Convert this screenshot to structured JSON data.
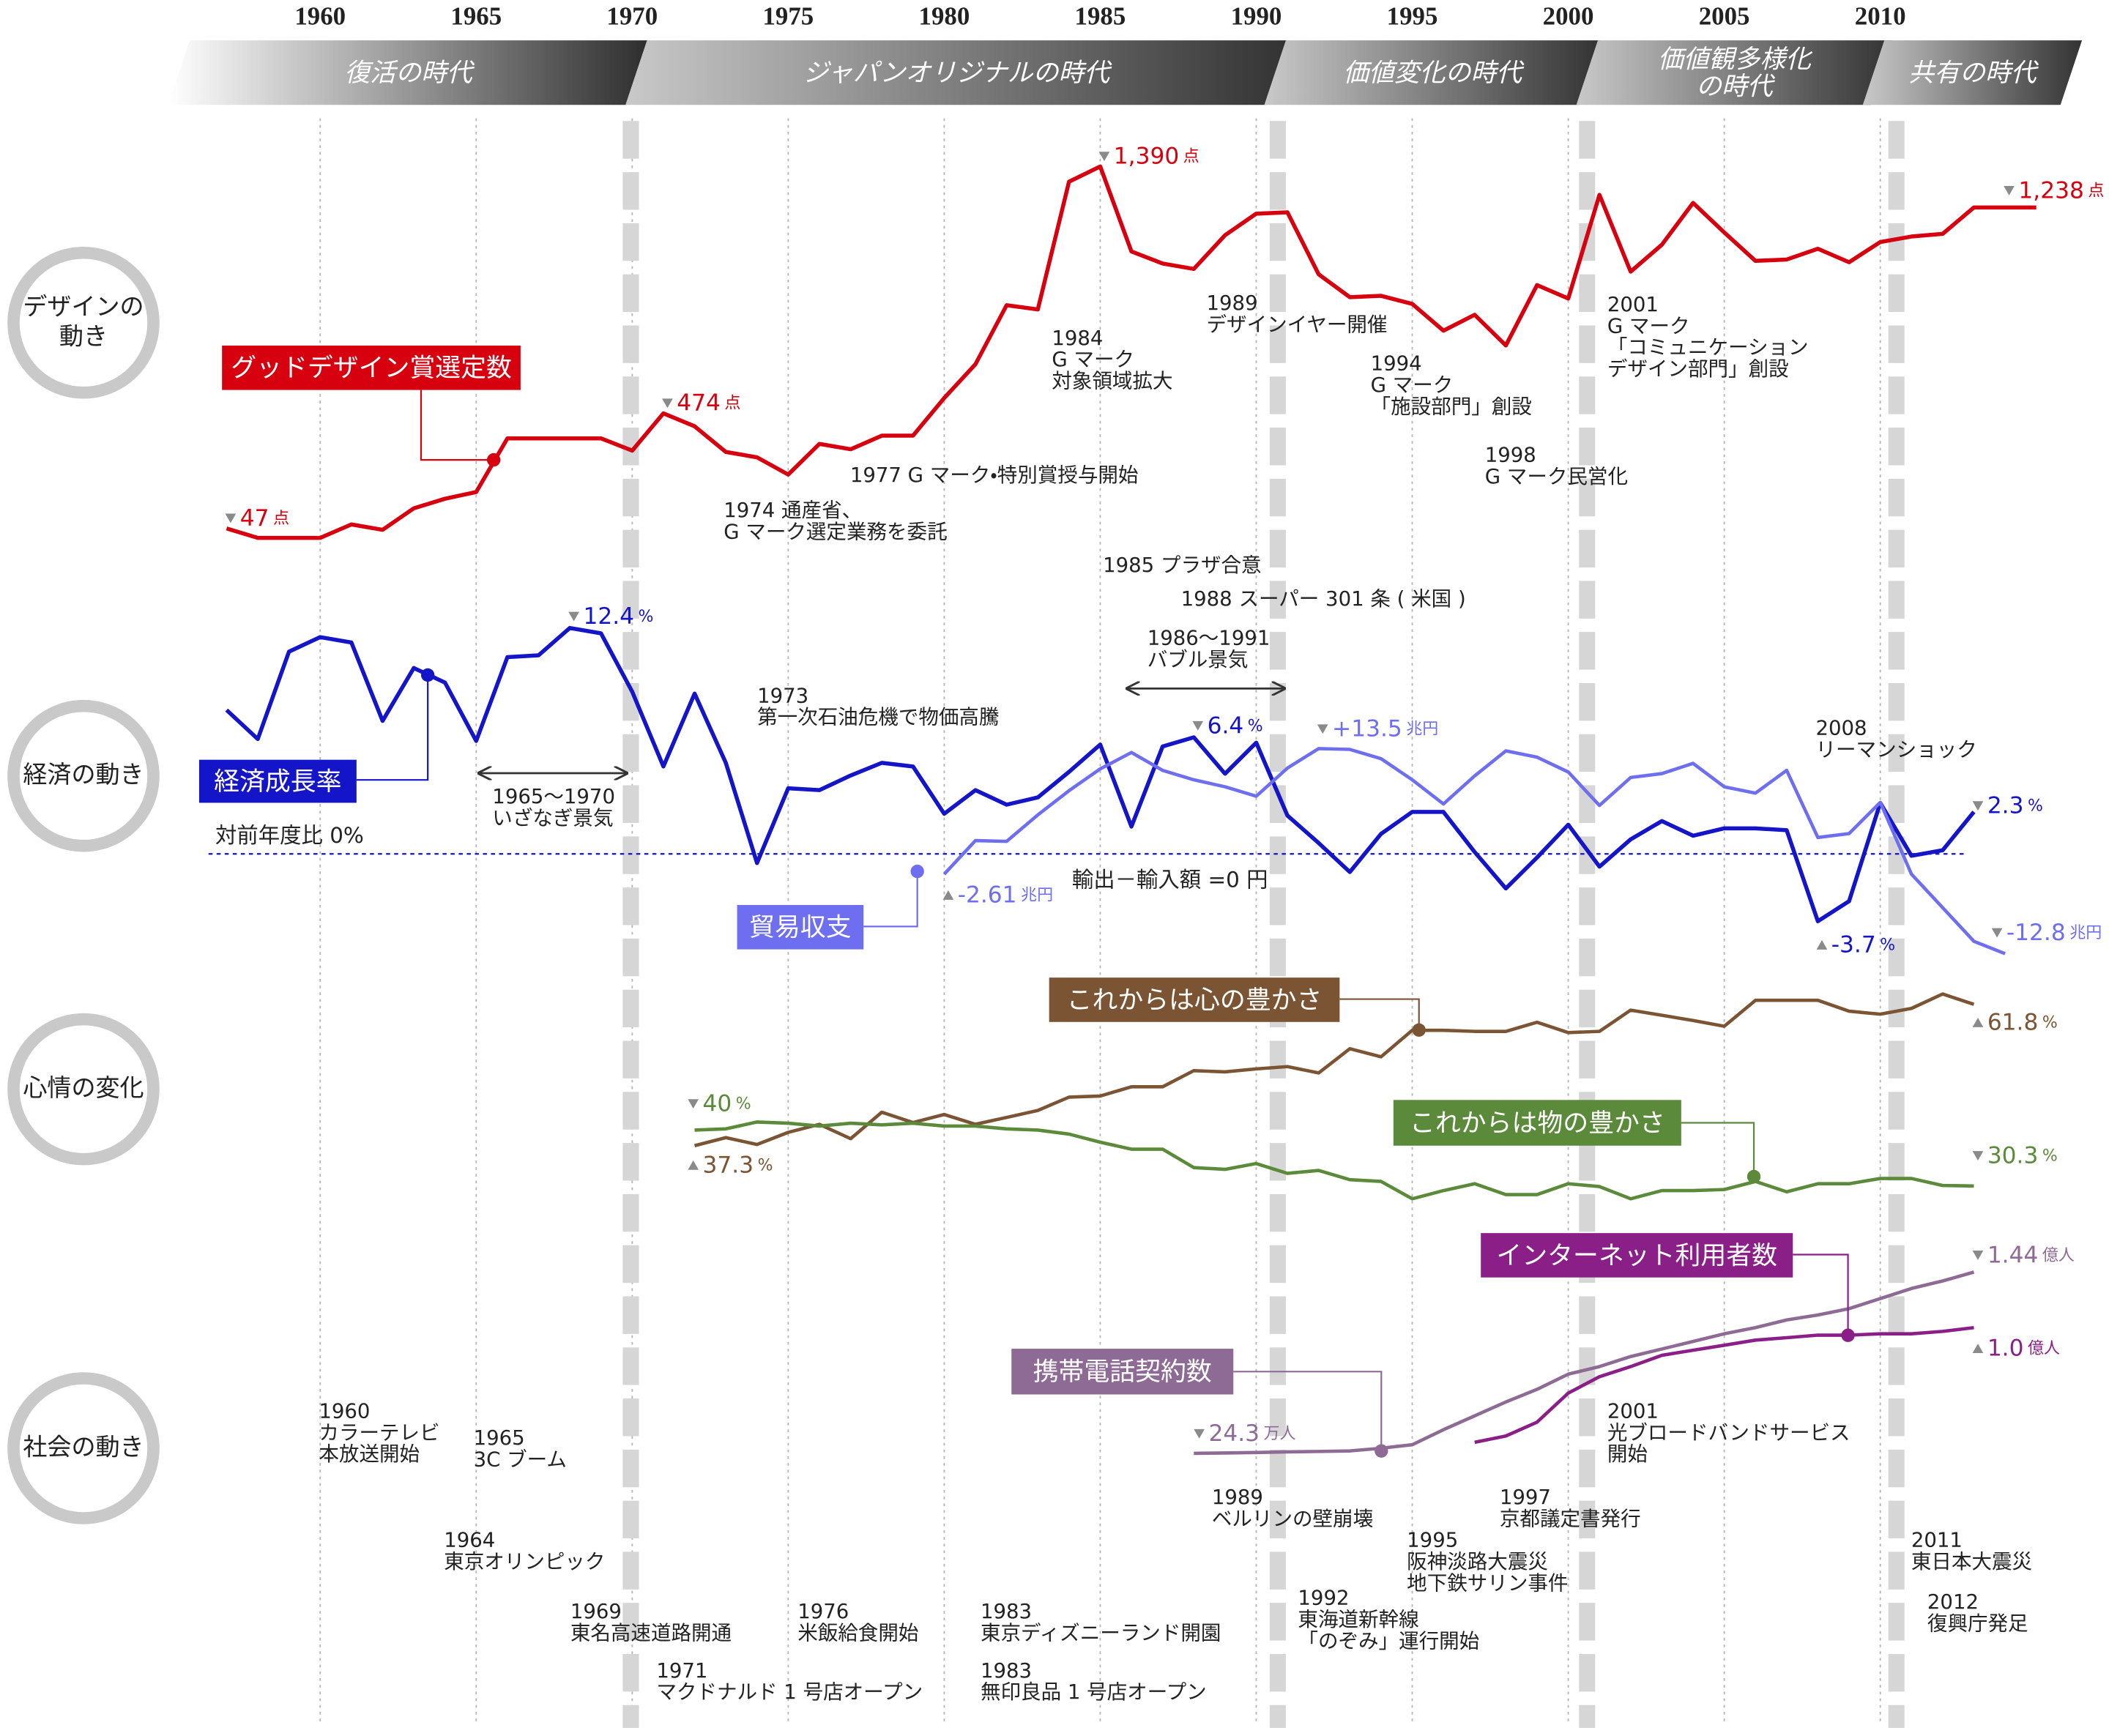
{
  "xticks": [
    1960,
    1965,
    1970,
    1975,
    1980,
    1985,
    1990,
    1995,
    2000,
    2005,
    2010
  ],
  "eras": [
    [
      "復活の時代"
    ],
    [
      "ジャパンオリジナルの時代"
    ],
    [
      "価値変化の時代"
    ],
    [
      "価値観多様化",
      "の時代"
    ],
    [
      "共有の時代"
    ]
  ],
  "rows": [
    [
      "デザインの",
      "動き"
    ],
    [
      "経済の動き"
    ],
    [
      "心情の変化"
    ],
    [
      "社会の動き"
    ]
  ],
  "reference_labels": [
    "対前年度比 0%",
    "輸出－輸入額 =0 円"
  ],
  "chart_data": [
    {
      "type": "line",
      "x": [
        1957,
        1958,
        1959,
        1960,
        1961,
        1962,
        1963,
        1964,
        1965,
        1966,
        1967,
        1968,
        1969,
        1970,
        1971,
        1972,
        1973,
        1974,
        1975,
        1976,
        1977,
        1978,
        1979,
        1980,
        1981,
        1982,
        1983,
        1984,
        1985,
        1986,
        1987,
        1988,
        1989,
        1990,
        1991,
        1992,
        1993,
        1994,
        1995,
        1996,
        1997,
        1998,
        1999,
        2000,
        2001,
        2002,
        2003,
        2004,
        2005,
        2006,
        2007,
        2008,
        2009,
        2010,
        2011,
        2012,
        2013,
        2014,
        2015
      ],
      "series": [
        {
          "name": "グッドデザイン賞選定数",
          "color": "#d7000f",
          "values": [
            47,
            12,
            12,
            12,
            62,
            42,
            122,
            157,
            182,
            381,
            381,
            381,
            381,
            336,
            474,
            426,
            331,
            311,
            247,
            361,
            341,
            391,
            391,
            531,
            656,
            875,
            860,
            1334,
            1390,
            1075,
            1030,
            1010,
            1135,
            1215,
            1220,
            990,
            905,
            910,
            880,
            781,
            840,
            726,
            950,
            900,
            1285,
            1000,
            1100,
            1255,
            1145,
            1040,
            1045,
            1085,
            1035,
            1110,
            1130,
            1140,
            1238,
            1238,
            1238
          ],
          "value_labels": [
            {
              "label": "47",
              "unit": "点"
            },
            null,
            null,
            null,
            null,
            null,
            null,
            null,
            null,
            null,
            null,
            null,
            null,
            null,
            {
              "label": "474",
              "unit": "点"
            },
            null,
            null,
            null,
            null,
            null,
            null,
            null,
            null,
            null,
            null,
            null,
            null,
            null,
            {
              "label": "1,390",
              "unit": "点"
            },
            null,
            null,
            null,
            null,
            null,
            null,
            null,
            null,
            null,
            null,
            null,
            null,
            null,
            null,
            null,
            null,
            null,
            null,
            null,
            null,
            null,
            null,
            null,
            null,
            null,
            null,
            null,
            null,
            {
              "label": "1,238",
              "unit": "点"
            },
            null
          ]
        }
      ]
    },
    {
      "type": "line",
      "x": [
        1957,
        1958,
        1959,
        1960,
        1961,
        1962,
        1963,
        1964,
        1965,
        1966,
        1967,
        1968,
        1969,
        1970,
        1971,
        1972,
        1973,
        1974,
        1975,
        1976,
        1977,
        1978,
        1979,
        1980,
        1981,
        1982,
        1983,
        1984,
        1985,
        1986,
        1987,
        1988,
        1989,
        1990,
        1991,
        1992,
        1993,
        1994,
        1995,
        1996,
        1997,
        1998,
        1999,
        2000,
        2001,
        2002,
        2003,
        2004,
        2005,
        2006,
        2007,
        2008,
        2009,
        2010,
        2011,
        2012,
        2013,
        2014
      ],
      "series": [
        {
          "name": "経済成長率",
          "color": "#1414c8",
          "values": [
            7.9,
            6.3,
            11.1,
            11.9,
            11.6,
            7.3,
            10.2,
            9.4,
            6.2,
            10.8,
            10.9,
            12.4,
            12.1,
            8.9,
            4.8,
            8.8,
            5.0,
            -0.5,
            3.6,
            3.5,
            4.3,
            5.0,
            4.8,
            2.2,
            3.5,
            2.7,
            3.1,
            4.5,
            6.0,
            1.5,
            5.9,
            6.4,
            4.4,
            6.1,
            2.1,
            0.6,
            -1.0,
            1.1,
            2.3,
            2.3,
            0.1,
            -1.9,
            -0.2,
            1.6,
            -0.7,
            0.8,
            1.8,
            1.0,
            1.4,
            1.4,
            1.3,
            -3.7,
            -2.6,
            2.8,
            -0.1,
            0.2,
            2.3,
            null
          ],
          "value_labels": [
            null,
            null,
            null,
            null,
            null,
            null,
            null,
            null,
            null,
            null,
            null,
            {
              "label": "12.4",
              "unit": "%"
            },
            null,
            null,
            null,
            null,
            null,
            null,
            null,
            null,
            null,
            null,
            null,
            null,
            null,
            null,
            null,
            null,
            null,
            null,
            null,
            {
              "label": "6.4",
              "unit": "%"
            },
            null,
            null,
            null,
            null,
            null,
            null,
            null,
            null,
            null,
            null,
            null,
            null,
            null,
            null,
            null,
            null,
            null,
            null,
            null,
            {
              "label": "-3.7",
              "unit": "%"
            },
            null,
            null,
            null,
            null,
            {
              "label": "2.3",
              "unit": "%"
            },
            null
          ]
        },
        {
          "name": "貿易収支",
          "color": "#6e6ef0",
          "values": [
            null,
            null,
            null,
            null,
            null,
            null,
            null,
            null,
            null,
            null,
            null,
            null,
            null,
            null,
            null,
            null,
            null,
            null,
            null,
            null,
            null,
            null,
            null,
            -2.61,
            1.7,
            1.6,
            5.0,
            8.1,
            10.9,
            13.0,
            10.7,
            9.5,
            8.6,
            7.4,
            11.0,
            13.5,
            13.4,
            12.2,
            9.5,
            6.4,
            10.0,
            13.2,
            12.4,
            10.5,
            6.2,
            9.8,
            10.3,
            11.6,
            8.6,
            7.8,
            10.7,
            2.1,
            2.6,
            6.6,
            -2.6,
            -6.9,
            -11.2,
            -12.8
          ],
          "value_labels": [
            null,
            null,
            null,
            null,
            null,
            null,
            null,
            null,
            null,
            null,
            null,
            null,
            null,
            null,
            null,
            null,
            null,
            null,
            null,
            null,
            null,
            null,
            null,
            {
              "label": "-2.61",
              "unit": "兆円"
            },
            null,
            null,
            null,
            null,
            null,
            null,
            null,
            null,
            null,
            null,
            null,
            {
              "label": "+13.5",
              "unit": "兆円"
            },
            null,
            null,
            null,
            null,
            null,
            null,
            null,
            null,
            null,
            null,
            null,
            null,
            null,
            null,
            null,
            null,
            null,
            null,
            null,
            null,
            null,
            {
              "label": "-12.8",
              "unit": "兆円"
            }
          ]
        }
      ]
    },
    {
      "type": "line",
      "x": [
        1972,
        1973,
        1974,
        1975,
        1976,
        1977,
        1978,
        1979,
        1980,
        1981,
        1982,
        1983,
        1984,
        1985,
        1986,
        1987,
        1988,
        1989,
        1990,
        1991,
        1992,
        1993,
        1994,
        1995,
        1996,
        1997,
        1998,
        1999,
        2000,
        2001,
        2002,
        2003,
        2004,
        2005,
        2006,
        2007,
        2008,
        2009,
        2010,
        2011,
        2012,
        2013
      ],
      "series": [
        {
          "name": "これからは心の豊かさ",
          "color": "#7b5434",
          "values": [
            37.3,
            38.7,
            37.5,
            39.6,
            41.0,
            38.5,
            43.1,
            41.3,
            42.7,
            41.0,
            42.2,
            43.4,
            45.7,
            45.9,
            47.5,
            47.5,
            50.3,
            50.1,
            50.6,
            51.0,
            49.9,
            54.1,
            52.7,
            57.3,
            57.3,
            57.1,
            57.1,
            58.7,
            56.9,
            57.1,
            60.8,
            59.9,
            59.0,
            58.0,
            62.5,
            62.5,
            62.5,
            60.6,
            60.1,
            61.1,
            63.6,
            61.8
          ],
          "value_labels": [
            {
              "label": "37.3",
              "unit": "%"
            },
            null,
            null,
            null,
            null,
            null,
            null,
            null,
            null,
            null,
            null,
            null,
            null,
            null,
            null,
            null,
            null,
            null,
            null,
            null,
            null,
            null,
            null,
            null,
            null,
            null,
            null,
            null,
            null,
            null,
            null,
            null,
            null,
            null,
            null,
            null,
            null,
            null,
            null,
            null,
            null,
            {
              "label": "61.8",
              "unit": "%"
            }
          ]
        },
        {
          "name": "これからは物の豊かさ",
          "color": "#5b8a3a",
          "values": [
            40,
            40.2,
            41.4,
            41.2,
            40.7,
            41.2,
            40.9,
            41.2,
            40.7,
            40.7,
            40.2,
            40.0,
            39.3,
            37.9,
            36.7,
            36.7,
            33.5,
            33.2,
            34.2,
            32.5,
            33.0,
            31.4,
            31.1,
            28.1,
            29.5,
            30.7,
            28.8,
            28.8,
            30.7,
            30.2,
            28.1,
            29.5,
            29.5,
            29.7,
            31.1,
            29.3,
            30.7,
            30.7,
            31.6,
            31.6,
            30.4,
            30.3
          ],
          "value_labels": [
            {
              "label": "40",
              "unit": "%"
            },
            null,
            null,
            null,
            null,
            null,
            null,
            null,
            null,
            null,
            null,
            null,
            null,
            null,
            null,
            null,
            null,
            null,
            null,
            null,
            null,
            null,
            null,
            null,
            null,
            null,
            null,
            null,
            null,
            null,
            null,
            null,
            null,
            null,
            null,
            null,
            null,
            null,
            null,
            null,
            null,
            {
              "label": "30.3",
              "unit": "%"
            }
          ]
        }
      ]
    },
    {
      "type": "line",
      "x": [
        1988,
        1989,
        1990,
        1991,
        1992,
        1993,
        1994,
        1995,
        1996,
        1997,
        1998,
        1999,
        2000,
        2001,
        2002,
        2003,
        2004,
        2005,
        2006,
        2007,
        2008,
        2009,
        2010,
        2011,
        2012,
        2013
      ],
      "series": [
        {
          "name": "携帯電話契約数",
          "color": "#8e6b95",
          "values": [
            0.00243,
            0.005,
            0.009,
            0.014,
            0.017,
            0.021,
            0.043,
            0.07,
            0.19,
            0.3,
            0.41,
            0.51,
            0.63,
            0.69,
            0.77,
            0.83,
            0.89,
            0.95,
            1.0,
            1.06,
            1.1,
            1.15,
            1.23,
            1.31,
            1.37,
            1.44
          ],
          "value_labels": [
            {
              "label": "24.3",
              "unit": "万人"
            },
            null,
            null,
            null,
            null,
            null,
            null,
            null,
            null,
            null,
            null,
            null,
            null,
            null,
            null,
            null,
            null,
            null,
            null,
            null,
            null,
            null,
            null,
            null,
            null,
            {
              "label": "1.44",
              "unit": "億人"
            }
          ]
        },
        {
          "name": "インターネット利用者数",
          "color": "#8a1f87",
          "values": [
            null,
            null,
            null,
            null,
            null,
            null,
            null,
            null,
            null,
            0.09,
            0.14,
            0.25,
            0.48,
            0.61,
            0.69,
            0.78,
            0.82,
            0.86,
            0.9,
            0.92,
            0.94,
            0.94,
            0.95,
            0.95,
            0.97,
            1.0
          ],
          "value_labels": [
            null,
            null,
            null,
            null,
            null,
            null,
            null,
            null,
            null,
            null,
            null,
            null,
            null,
            null,
            null,
            null,
            null,
            null,
            null,
            null,
            null,
            null,
            null,
            null,
            null,
            {
              "label": "1.0",
              "unit": "億人"
            }
          ]
        }
      ]
    }
  ],
  "annotations": [
    {
      "lines": [
        "1974 通産省、",
        "G マーク選定業務を委託"
      ]
    },
    {
      "lines": [
        "1977 G マーク・特別賞授与開始"
      ]
    },
    {
      "lines": [
        "1984",
        "G マーク",
        "対象領域拡大"
      ]
    },
    {
      "lines": [
        "1989",
        "デザインイヤー開催"
      ]
    },
    {
      "lines": [
        "1994",
        "G マーク",
        "「施設部門」創設"
      ]
    },
    {
      "lines": [
        "1998",
        "G マーク民営化"
      ]
    },
    {
      "lines": [
        "2001",
        "G マーク",
        "「コミュニケーション",
        "デザイン部門」創設"
      ]
    },
    {
      "lines": [
        "1985 プラザ合意"
      ]
    },
    {
      "lines": [
        "1988 スーパー 301 条 ( 米国 )"
      ]
    },
    {
      "lines": [
        "1986～1991",
        "バブル景気"
      ]
    },
    {
      "lines": [
        "1973",
        "第一次石油危機で物価高騰"
      ]
    },
    {
      "lines": [
        "1965～1970",
        "いざなぎ景気"
      ]
    },
    {
      "lines": [
        "2008",
        "リーマンショック"
      ]
    },
    {
      "lines": [
        "1960",
        "カラーテレビ",
        "本放送開始"
      ]
    },
    {
      "lines": [
        "1965",
        "3C ブーム"
      ]
    },
    {
      "lines": [
        "1964",
        "東京オリンピック"
      ]
    },
    {
      "lines": [
        "1969",
        "東名高速道路開通"
      ]
    },
    {
      "lines": [
        "1971",
        "マクドナルド 1 号店オープン"
      ]
    },
    {
      "lines": [
        "1976",
        "米飯給食開始"
      ]
    },
    {
      "lines": [
        "1983",
        "東京ディズニーランド開園"
      ]
    },
    {
      "lines": [
        "1983",
        "無印良品 1 号店オープン"
      ]
    },
    {
      "lines": [
        "1989",
        "ベルリンの壁崩壊"
      ]
    },
    {
      "lines": [
        "1992",
        "東海道新幹線",
        "「のぞみ」運行開始"
      ]
    },
    {
      "lines": [
        "1995",
        "阪神淡路大震災",
        "地下鉄サリン事件"
      ]
    },
    {
      "lines": [
        "1997",
        "京都議定書発行"
      ]
    },
    {
      "lines": [
        "2001",
        "光ブロードバンドサービス",
        "開始"
      ]
    },
    {
      "lines": [
        "2011",
        "東日本大震災"
      ]
    },
    {
      "lines": [
        "2012",
        "復興庁発足"
      ]
    }
  ]
}
